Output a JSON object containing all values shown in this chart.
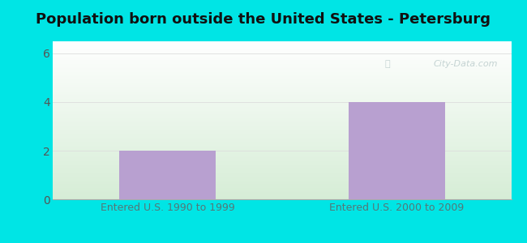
{
  "title": "Population born outside the United States - Petersburg",
  "categories": [
    "Entered U.S. 1990 to 1999",
    "Entered U.S. 2000 to 2009"
  ],
  "values": [
    2,
    4
  ],
  "bar_color": "#b8a0d0",
  "xlabel_color": "#557777",
  "title_color": "#111111",
  "background_color": "#00e5e5",
  "plot_bg_top": "#ffffff",
  "plot_bg_bottom": "#d4edda",
  "yticks": [
    0,
    2,
    4,
    6
  ],
  "ylim": [
    0,
    6.5
  ],
  "grid_color": "#dddddd",
  "watermark": "City-Data.com",
  "title_fontsize": 13,
  "xlabel_fontsize": 9,
  "ytick_fontsize": 10,
  "ytick_color": "#555555"
}
